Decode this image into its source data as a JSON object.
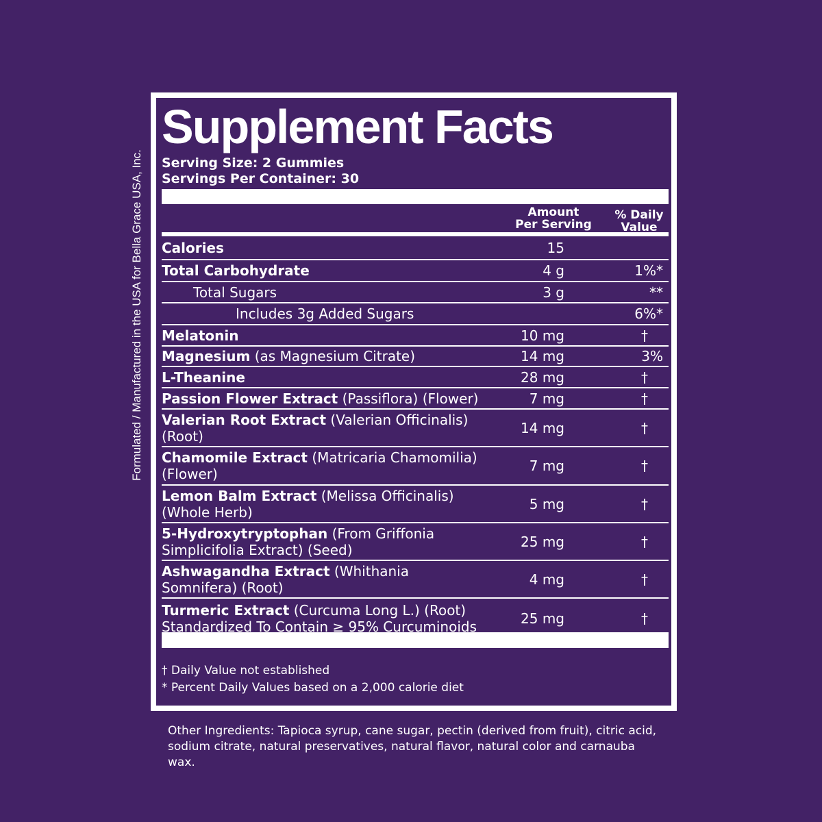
{
  "side_text": "Formulated / Manufactured in the USA for Bella Grace USA, Inc.",
  "title": "Supplement Facts",
  "serving_size": "Serving Size: 2 Gummies",
  "servings_per_container": "Servings Per Container: 30",
  "columns": {
    "amount_line1": "Amount",
    "amount_line2": "Per Serving",
    "dv_line1": "% Daily",
    "dv_line2": "Value"
  },
  "rows": [
    {
      "bold": "Calories",
      "rest": "",
      "amount": "15",
      "dv": "",
      "indent": 0,
      "h": 34
    },
    {
      "bold": "Total Carbohydrate",
      "rest": "",
      "amount": "4 g",
      "dv": "1%*",
      "indent": 0,
      "h": 32
    },
    {
      "bold": "",
      "rest": "Total Sugars",
      "amount": "3 g",
      "dv": "**",
      "indent": 46,
      "h": 31
    },
    {
      "bold": "",
      "rest": "Includes 3g Added Sugars",
      "amount": "",
      "dv": "6%*",
      "indent": 108,
      "h": 32
    },
    {
      "bold": "Melatonin",
      "rest": "",
      "amount": "10 mg",
      "dv": "†",
      "indent": 0,
      "h": 31
    },
    {
      "bold": "Magnesium",
      "rest": " (as Magnesium Citrate)",
      "amount": "14 mg",
      "dv": "3%",
      "indent": 0,
      "h": 30
    },
    {
      "bold": "L-Theanine",
      "rest": "",
      "amount": "28 mg",
      "dv": "†",
      "indent": 0,
      "h": 31
    },
    {
      "bold": "Passion Flower Extract",
      "rest": " (Passiflora) (Flower)",
      "amount": "7 mg",
      "dv": "†",
      "indent": 0,
      "h": 31
    },
    {
      "bold": "Valerian Root Extract",
      "rest": " (Valerian Officinalis) (Root)",
      "amount": "14 mg",
      "dv": "†",
      "indent": 0,
      "h": 55
    },
    {
      "bold": "Chamomile Extract",
      "rest": " (Matricaria Chamomilia) (Flower)",
      "amount": "7 mg",
      "dv": "†",
      "indent": 0,
      "h": 56
    },
    {
      "bold": "Lemon Balm Extract",
      "rest": " (Melissa Officinalis) (Whole Herb)",
      "amount": "5 mg",
      "dv": "†",
      "indent": 0,
      "h": 55
    },
    {
      "bold": "5-Hydroxytryptophan",
      "rest": " (From Griffonia Simplicifolia Extract) (Seed)",
      "amount": "25 mg",
      "dv": "†",
      "indent": 0,
      "h": 55
    },
    {
      "bold": "Ashwagandha Extract",
      "rest": " (Whithania Somnifera) (Root)",
      "amount": "4 mg",
      "dv": "†",
      "indent": 0,
      "h": 55
    },
    {
      "bold": "Turmeric Extract",
      "rest": " (Curcuma Long L.) (Root) Standardized To Contain ≥ 95% Curcuminoids",
      "amount": "25 mg",
      "dv": "†",
      "indent": 0,
      "h": 58
    }
  ],
  "footnotes": [
    "† Daily Value not established",
    " * Percent Daily Values based on a 2,000 calorie diet"
  ],
  "other_ingredients": "Other Ingredients: Tapioca syrup, cane sugar, pectin (derived from fruit), citric acid, sodium citrate, natural preservatives, natural flavor, natural color and carnauba wax.",
  "colors": {
    "background": "#432266",
    "text": "#ffffff"
  }
}
